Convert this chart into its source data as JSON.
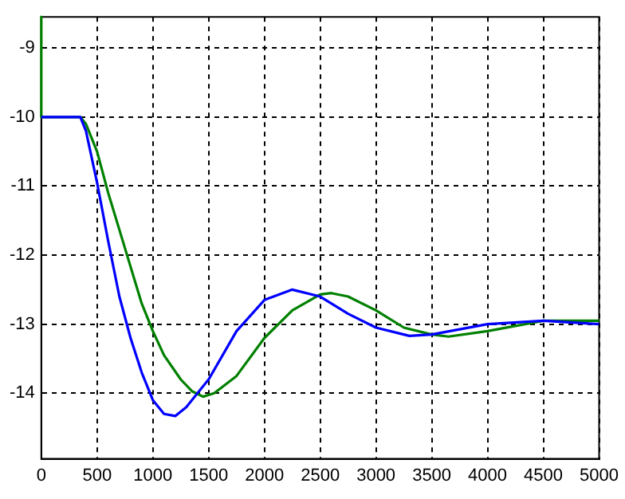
{
  "chart_data": {
    "type": "line",
    "xlim": [
      0,
      5000
    ],
    "xticks": [
      0,
      500,
      1000,
      1500,
      2000,
      2500,
      3000,
      3500,
      4000,
      4500,
      5000
    ],
    "ylim": [
      -14.95,
      -8.55
    ],
    "yticks": [
      -14,
      -13,
      -12,
      -11,
      -10,
      -9
    ],
    "grid": true,
    "line_style": "solid",
    "marker": "none",
    "legend": false,
    "series": [
      {
        "color": "#0000ff",
        "x": [
          0,
          350,
          400,
          500,
          600,
          700,
          800,
          900,
          1000,
          1100,
          1200,
          1300,
          1400,
          1500,
          1750,
          2000,
          2250,
          2500,
          2750,
          3000,
          3300,
          3500,
          4000,
          4500,
          5000
        ],
        "values": [
          -10,
          -10,
          -10.2,
          -10.95,
          -11.8,
          -12.6,
          -13.2,
          -13.7,
          -14.1,
          -14.3,
          -14.33,
          -14.2,
          -14,
          -13.8,
          -13.1,
          -12.65,
          -12.5,
          -12.6,
          -12.85,
          -13.05,
          -13.17,
          -13.15,
          -13,
          -12.95,
          -13
        ]
      },
      {
        "color": "#008000",
        "x": [
          0,
          0,
          350,
          400,
          500,
          600,
          750,
          900,
          1000,
          1100,
          1250,
          1350,
          1450,
          1550,
          1750,
          2000,
          2250,
          2500,
          2600,
          2750,
          3000,
          3250,
          3500,
          3650,
          4000,
          4500,
          5000
        ],
        "values": [
          -8.55,
          -10,
          -10,
          -10.1,
          -10.5,
          -11.1,
          -11.9,
          -12.7,
          -13.1,
          -13.45,
          -13.8,
          -13.97,
          -14.05,
          -14,
          -13.75,
          -13.2,
          -12.8,
          -12.57,
          -12.55,
          -12.6,
          -12.8,
          -13.05,
          -13.15,
          -13.18,
          -13.1,
          -12.95,
          -12.95
        ]
      }
    ]
  }
}
